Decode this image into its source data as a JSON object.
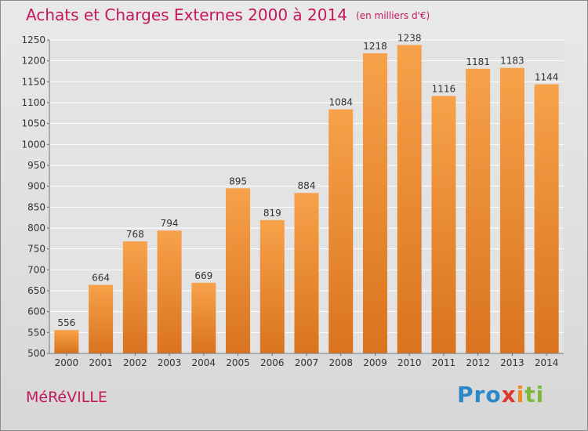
{
  "header": {
    "title": "Achats et Charges Externes 2000 à 2014",
    "unit": "(en milliers d'€)"
  },
  "footer": {
    "town": "MéRéVILLE",
    "logo": [
      "Pro",
      "x",
      "i",
      "ti"
    ]
  },
  "colors": {
    "accent": "#c2185b",
    "bar_light": "#f7a24a",
    "bar_dark": "#d9731f",
    "grid": "#ffffff"
  },
  "chart_data": {
    "type": "bar",
    "title": "Achats et Charges Externes 2000 à 2014",
    "subtitle": "(en milliers d'€)",
    "xlabel": "",
    "ylabel": "",
    "categories": [
      "2000",
      "2001",
      "2002",
      "2003",
      "2004",
      "2005",
      "2006",
      "2007",
      "2008",
      "2009",
      "2010",
      "2011",
      "2012",
      "2013",
      "2014"
    ],
    "values": [
      556,
      664,
      768,
      794,
      669,
      895,
      819,
      884,
      1084,
      1218,
      1238,
      1116,
      1181,
      1183,
      1144
    ],
    "ylim": [
      500,
      1250
    ],
    "yticks": [
      500,
      550,
      600,
      650,
      700,
      750,
      800,
      850,
      900,
      950,
      1000,
      1050,
      1100,
      1150,
      1200,
      1250
    ],
    "grid": true,
    "data_labels": true
  }
}
